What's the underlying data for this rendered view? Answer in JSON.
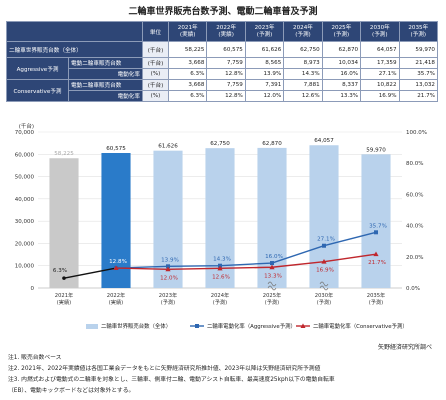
{
  "title": "二輪車世界販売台数予測、電動二輪車普及予測",
  "table": {
    "unit_header": "単位",
    "years": [
      "2021年\n(実績)",
      "2022年\n(実績)",
      "2023年\n(予測)",
      "2024年\n(予測)",
      "2025年\n(予測)",
      "2030年\n(予測)",
      "2035年\n(予測)"
    ],
    "total_label": "二輪車世界販売台数（全体）",
    "total_unit": "(千台)",
    "total_values": [
      "58,225",
      "60,575",
      "61,626",
      "62,750",
      "62,870",
      "64,057",
      "59,970"
    ],
    "aggressive_label": "Aggressive予測",
    "conservative_label": "Conservative予測",
    "ev_sales_label": "電動二輪車販売台数",
    "ev_rate_label": "電動化率",
    "rate_unit": "(%)",
    "aggressive_sales": [
      "3,668",
      "7,759",
      "8,565",
      "8,973",
      "10,034",
      "17,359",
      "21,418"
    ],
    "aggressive_rate": [
      "6.3%",
      "12.8%",
      "13.9%",
      "14.3%",
      "16.0%",
      "27.1%",
      "35.7%"
    ],
    "conservative_sales": [
      "3,668",
      "7,759",
      "7,391",
      "7,881",
      "8,337",
      "10,822",
      "13,032"
    ],
    "conservative_rate": [
      "6.3%",
      "12.8%",
      "12.0%",
      "12.6%",
      "13.3%",
      "16.9%",
      "21.7%"
    ]
  },
  "chart_data": {
    "type": "bar",
    "categories": [
      "2021年\n(実績)",
      "2022年\n(実績)",
      "2023年\n(予測)",
      "2024年\n(予測)",
      "2025年\n(予測)",
      "2030年\n(予測)",
      "2035年\n(予測)"
    ],
    "bar_series": {
      "name": "二輪車世界販売台数（全体）",
      "values": [
        58225,
        60575,
        61626,
        62750,
        62870,
        64057,
        59970
      ]
    },
    "bar_labels": [
      "58,225",
      "60,575",
      "61,626",
      "62,750",
      "62,870",
      "64,057",
      "59,970"
    ],
    "line_series": [
      {
        "name": "二輪車電動化率（Aggressive予測）",
        "values": [
          6.3,
          12.8,
          13.9,
          14.3,
          16.0,
          27.1,
          35.7
        ],
        "labels": [
          "6.3%",
          "12.8%",
          "13.9%",
          "14.3%",
          "16.0%",
          "27.1%",
          "35.7%"
        ],
        "color": "#2e67b1"
      },
      {
        "name": "二輪車電動化率（Conservative予測）",
        "values": [
          6.3,
          12.8,
          12.0,
          12.6,
          13.3,
          16.9,
          21.7
        ],
        "labels": [
          "6.3%",
          "12.8%",
          "12.0%",
          "12.6%",
          "13.3%",
          "16.9%",
          "21.7%"
        ],
        "color": "#c0272d"
      }
    ],
    "ylabel_left": "(千台)",
    "ylim_left": [
      0,
      70000
    ],
    "yticks_left": [
      "0",
      "10,000",
      "20,000",
      "30,000",
      "40,000",
      "50,000",
      "60,000",
      "70,000"
    ],
    "ylim_right": [
      0,
      100
    ],
    "yticks_right": [
      "0.0%",
      "20.0%",
      "40.0%",
      "60.0%",
      "80.0%",
      "100.0%"
    ],
    "grid": true,
    "legend_position": "bottom",
    "colors": {
      "actual_bar": "#2a7bc9",
      "forecast_bar": "#b9d2ec",
      "actual_2021_bar": "#c9c9c9",
      "black_line": "#111111"
    }
  },
  "notes": [
    "注1. 販売台数ベース",
    "注2. 2021年、2022年実績値は各国工業会データをもとに矢野経済研究所推計値、2023年以降は矢野経済研究所予測値",
    "注3. 内燃式および電動式の二輪車を対象とし、三輪車、側車付二輪、電動アシスト自転車、最高速度25kph以下の電動自転車",
    "（EB）、電動キックボードなどは対象外とする。"
  ],
  "source": "矢野経済研究所調べ"
}
